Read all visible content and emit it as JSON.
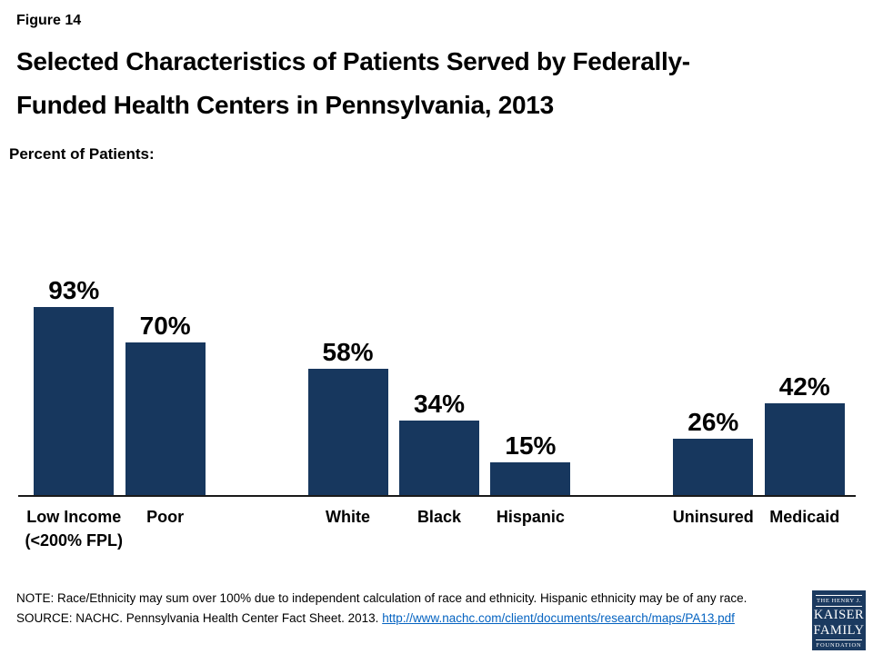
{
  "header": {
    "figure_label": "Figure 14",
    "title": "Selected Characteristics of Patients Served by Federally-\nFunded Health Centers in Pennsylvania, 2013",
    "axis_unit_label": "Percent of Patients:"
  },
  "chart_data": {
    "type": "bar",
    "title": "Selected Characteristics of Patients Served by Federally-Funded Health Centers in Pennsylvania, 2013",
    "ylabel": "Percent of Patients",
    "ylim": [
      0,
      100
    ],
    "grid": false,
    "legend": false,
    "bar_color": "#17375E",
    "categories": [
      "Low Income\n(<200% FPL)",
      "Poor",
      "White",
      "Black",
      "Hispanic",
      "Uninsured",
      "Medicaid"
    ],
    "values": [
      93,
      70,
      58,
      34,
      15,
      26,
      42
    ],
    "data_labels": [
      "93%",
      "70%",
      "58%",
      "34%",
      "15%",
      "26%",
      "42%"
    ],
    "spacer_after_indices": [
      1,
      4
    ]
  },
  "footer": {
    "note": "NOTE: Race/Ethnicity may sum over 100% due to independent calculation of race and ethnicity. Hispanic ethnicity may be of any race.",
    "source_prefix": "SOURCE: NACHC. Pennsylvania Health Center Fact Sheet. 2013. ",
    "source_link": "http://www.nachc.com/client/documents/research/maps/PA13.pdf",
    "source_link_color": "#0563C1",
    "logo": {
      "line1": "THE HENRY J.",
      "line2": "KAISER",
      "line3": "FAMILY",
      "line4": "FOUNDATION",
      "background": "#1B3A60"
    }
  }
}
